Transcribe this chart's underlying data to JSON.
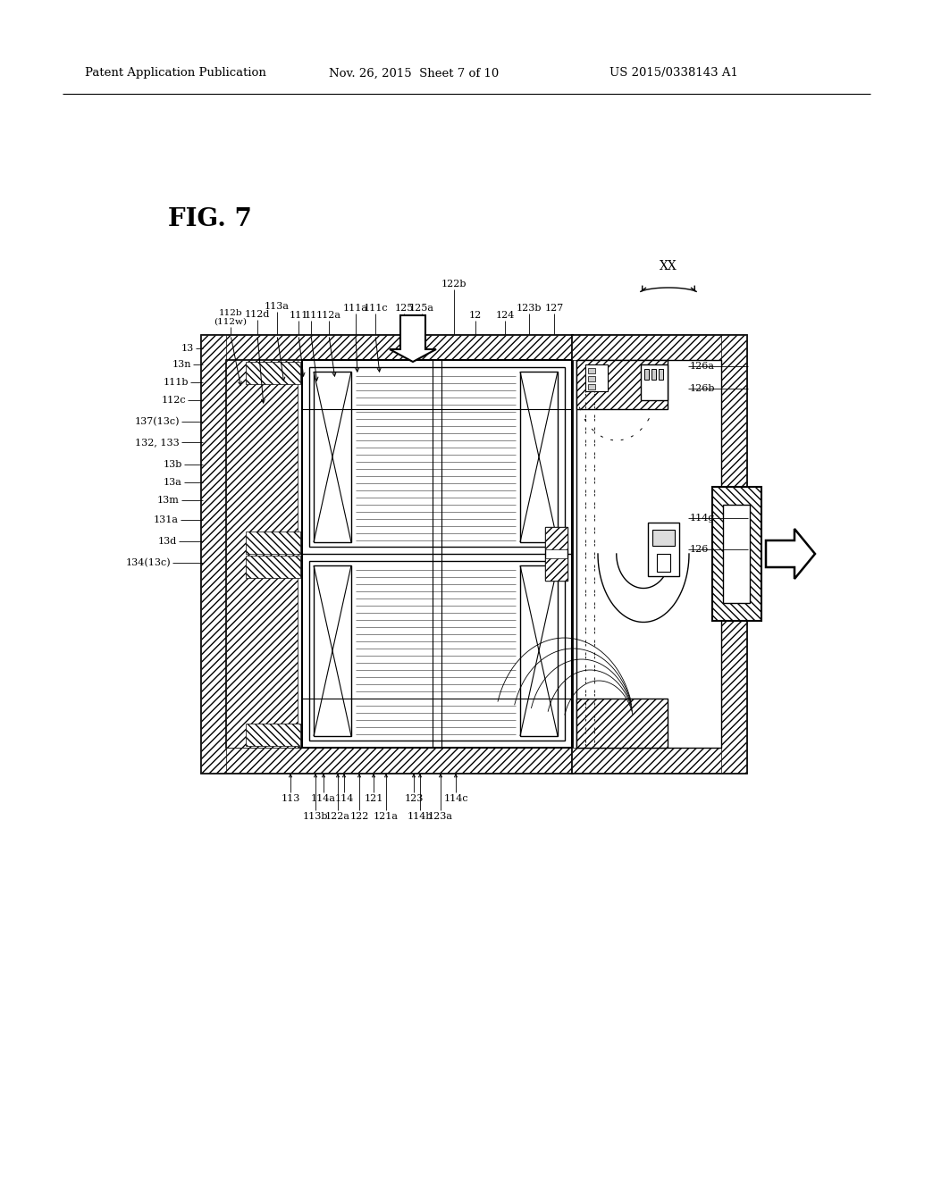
{
  "bg": "#ffffff",
  "hdr_left": "Patent Application Publication",
  "hdr_mid": "Nov. 26, 2015  Sheet 7 of 10",
  "hdr_right": "US 2015/0338143 A1",
  "fig_label": "FIG. 7"
}
